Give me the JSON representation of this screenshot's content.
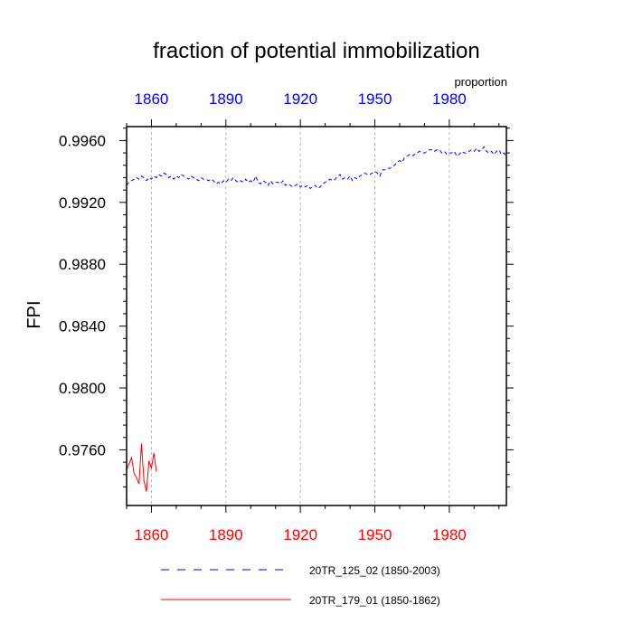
{
  "chart_data": {
    "type": "line",
    "title": "fraction of potential immobilization",
    "ylabel": "FPI",
    "top_axis_units": "proportion",
    "xlim": [
      1850,
      2003
    ],
    "ylim": [
      0.9724,
      0.9969
    ],
    "x_ticks": [
      1860,
      1890,
      1920,
      1950,
      1980
    ],
    "y_ticks": [
      0.976,
      0.98,
      0.984,
      0.988,
      0.992,
      0.996
    ],
    "y_tick_labels": [
      "0.9760",
      "0.9800",
      "0.9840",
      "0.9880",
      "0.9920",
      "0.9960"
    ],
    "y_minor_step": 0.0008,
    "grid": "vertical dashed at major x ticks",
    "colors": {
      "top_axis_labels": "#0000ff",
      "bottom_axis_labels": "#ff0000",
      "series_1": "#0000ff",
      "series_2": "#ff0000"
    },
    "series": [
      {
        "name": "20TR_125_02 (1850-2003)",
        "color": "#0000ff",
        "style": "dashed",
        "x_start": 1850,
        "x_step": 1,
        "values": [
          0.9931,
          0.9933,
          0.9934,
          0.9935,
          0.9936,
          0.9935,
          0.9937,
          0.9936,
          0.9934,
          0.9936,
          0.9935,
          0.9937,
          0.9936,
          0.9938,
          0.9937,
          0.9939,
          0.9938,
          0.9936,
          0.9937,
          0.9935,
          0.9937,
          0.9936,
          0.9938,
          0.9937,
          0.9936,
          0.9935,
          0.9937,
          0.9936,
          0.9935,
          0.9934,
          0.9936,
          0.9935,
          0.9935,
          0.9934,
          0.9935,
          0.9934,
          0.9932,
          0.9933,
          0.9932,
          0.9934,
          0.9933,
          0.9935,
          0.9934,
          0.9936,
          0.9934,
          0.9933,
          0.9934,
          0.9933,
          0.9935,
          0.9933,
          0.9934,
          0.9933,
          0.9937,
          0.9933,
          0.9932,
          0.9934,
          0.9933,
          0.9931,
          0.9934,
          0.9932,
          0.9933,
          0.9933,
          0.9932,
          0.9934,
          0.9931,
          0.9932,
          0.9931,
          0.993,
          0.9931,
          0.9932,
          0.993,
          0.9931,
          0.993,
          0.9931,
          0.9929,
          0.993,
          0.9931,
          0.9929,
          0.993,
          0.9932,
          0.9933,
          0.9934,
          0.9935,
          0.9934,
          0.9935,
          0.9937,
          0.9938,
          0.9935,
          0.9936,
          0.9935,
          0.9937,
          0.9934,
          0.9936,
          0.9935,
          0.9937,
          0.9938,
          0.9939,
          0.9938,
          0.9938,
          0.9939,
          0.994,
          0.9939,
          0.9937,
          0.9941,
          0.9941,
          0.9942,
          0.9942,
          0.9943,
          0.9944,
          0.9946,
          0.9947,
          0.9946,
          0.9949,
          0.995,
          0.9951,
          0.995,
          0.9951,
          0.9952,
          0.9953,
          0.9952,
          0.9952,
          0.9953,
          0.9954,
          0.9954,
          0.9953,
          0.9954,
          0.9954,
          0.9952,
          0.9953,
          0.9951,
          0.9952,
          0.9952,
          0.9953,
          0.995,
          0.9951,
          0.9953,
          0.9952,
          0.9952,
          0.9953,
          0.9954,
          0.9953,
          0.9955,
          0.9953,
          0.9954,
          0.9956,
          0.9953,
          0.9952,
          0.9953,
          0.9951,
          0.9953,
          0.9954,
          0.9951,
          0.9952,
          0.995
        ]
      },
      {
        "name": "20TR_179_01 (1850-1862)",
        "color": "#ff0000",
        "style": "solid",
        "x_start": 1850,
        "x_step": 1,
        "values": [
          0.9747,
          0.9751,
          0.9755,
          0.9745,
          0.9742,
          0.9738,
          0.9764,
          0.974,
          0.9733,
          0.9753,
          0.9748,
          0.9758,
          0.9746
        ]
      }
    ]
  }
}
